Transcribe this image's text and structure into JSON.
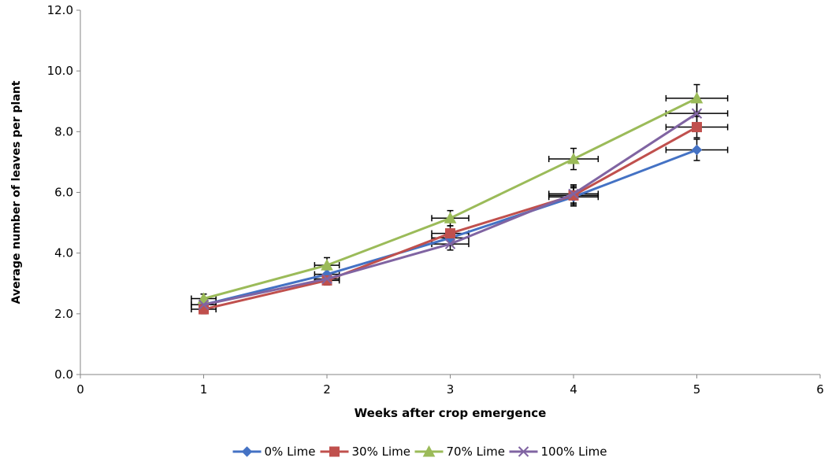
{
  "chart_data": {
    "type": "line",
    "title": "",
    "xlabel": "Weeks after crop emergence",
    "ylabel": "Average number of leaves per plant",
    "xlim": [
      0,
      6
    ],
    "ylim": [
      0,
      12
    ],
    "x_ticks": [
      "0",
      "1",
      "2",
      "3",
      "4",
      "5",
      "6"
    ],
    "y_ticks": [
      "0.0",
      "2.0",
      "4.0",
      "6.0",
      "8.0",
      "10.0",
      "12.0"
    ],
    "grid": false,
    "legend_position": "bottom",
    "x": [
      1,
      2,
      3,
      4,
      5
    ],
    "series": [
      {
        "name": "0% Lime",
        "color": "#4472C4",
        "marker": "diamond",
        "values": [
          2.3,
          3.3,
          4.5,
          5.85,
          7.4
        ],
        "y_err": [
          0.15,
          0.15,
          0.25,
          0.3,
          0.35
        ],
        "x_err": [
          0.1,
          0.1,
          0.15,
          0.2,
          0.25
        ]
      },
      {
        "name": "30% Lime",
        "color": "#C0504D",
        "marker": "square",
        "values": [
          2.15,
          3.1,
          4.65,
          5.9,
          8.15
        ],
        "y_err": [
          0.15,
          0.15,
          0.25,
          0.3,
          0.35
        ],
        "x_err": [
          0.1,
          0.1,
          0.15,
          0.2,
          0.25
        ]
      },
      {
        "name": "70% Lime",
        "color": "#9BBB59",
        "marker": "triangle",
        "values": [
          2.5,
          3.6,
          5.15,
          7.1,
          9.1
        ],
        "y_err": [
          0.15,
          0.25,
          0.25,
          0.35,
          0.45
        ],
        "x_err": [
          0.1,
          0.1,
          0.15,
          0.2,
          0.25
        ]
      },
      {
        "name": "100% Lime",
        "color": "#8064A2",
        "marker": "x",
        "values": [
          2.3,
          3.15,
          4.3,
          5.95,
          8.6
        ],
        "y_err": [
          0.15,
          0.15,
          0.2,
          0.3,
          0.4
        ],
        "x_err": [
          0.1,
          0.1,
          0.15,
          0.2,
          0.25
        ]
      }
    ]
  }
}
